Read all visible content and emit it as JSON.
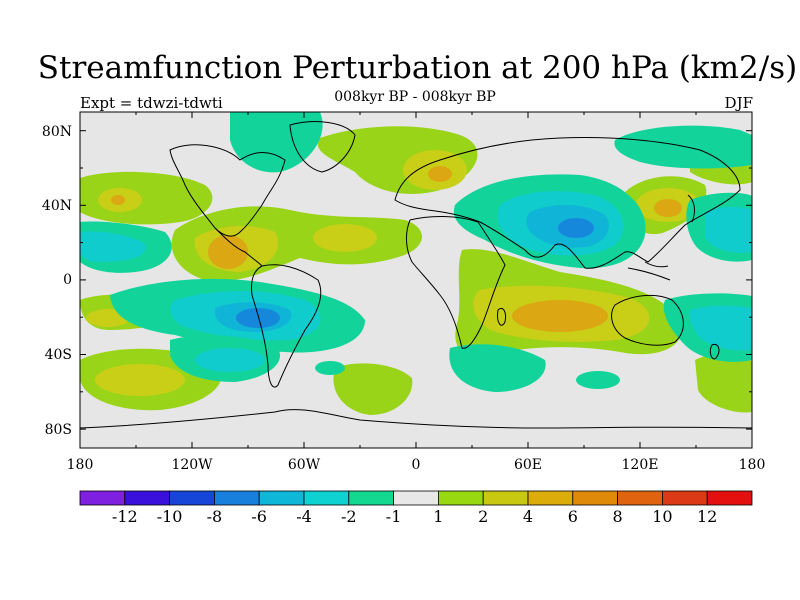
{
  "title": "Streamfunction Perturbation at 200 hPa (km2/s)",
  "subtitle": "008kyr BP - 008kyr BP",
  "left_label": "Expt = tdwzi-tdwti",
  "right_label": "DJF",
  "lat_labels": [
    "80N",
    "40N",
    "0",
    "40S",
    "80S"
  ],
  "lon_labels": [
    "180",
    "120W",
    "60W",
    "0",
    "60E",
    "120E",
    "180"
  ],
  "colorbar": {
    "colors": [
      "#7f1fe0",
      "#3a10dc",
      "#1646d8",
      "#1680dc",
      "#0eb6d8",
      "#0ed2d2",
      "#12d890",
      "#e8e8e8",
      "#98d810",
      "#c8c810",
      "#dcac0a",
      "#e08a0a",
      "#e06410",
      "#dc3a16",
      "#e41010"
    ],
    "labels": [
      "-12",
      "-10",
      "-8",
      "-6",
      "-4",
      "-2",
      "-1",
      "1",
      "2",
      "4",
      "6",
      "8",
      "10",
      "12"
    ]
  },
  "field_colors": {
    "neutral": "#e6e6e6",
    "pos1": "#9ad419",
    "pos2": "#c8cf16",
    "pos3": "#dba712",
    "neg1": "#12d49a",
    "neg2": "#10cccc",
    "neg3": "#10b4d6",
    "neg4": "#1688dc"
  },
  "coast_color": "#000000"
}
